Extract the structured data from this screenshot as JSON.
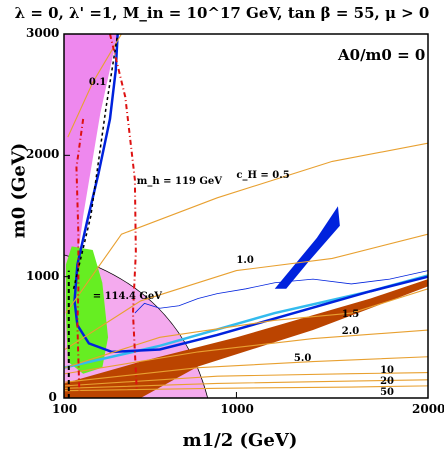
{
  "chart_data": {
    "type": "line",
    "title": "λ = 0, λ' =1, M_in = 10^17 GeV, tan β = 55, μ > 0",
    "corner_label": "A0/m0 = 0",
    "xlabel": "m1/2 (GeV)",
    "ylabel": "m0 (GeV)",
    "xlim": [
      100,
      2000
    ],
    "ylim": [
      0,
      3000
    ],
    "x_tick_labels": [
      "100",
      "1000",
      "2000"
    ],
    "y_tick_labels": [
      "0",
      "1000",
      "2000",
      "3000"
    ],
    "grid": false,
    "fine_tuning_contours": {
      "prefix_label": "c_H =",
      "levels": [
        {
          "label": "0.1",
          "points": [
            [
              120,
              2150
            ],
            [
              250,
              2600
            ],
            [
              400,
              3000
            ]
          ]
        },
        {
          "label": "0.5",
          "points": [
            [
              110,
              700
            ],
            [
              400,
              1350
            ],
            [
              900,
              1650
            ],
            [
              1500,
              1950
            ],
            [
              2000,
              2100
            ]
          ]
        },
        {
          "label": "1.0",
          "points": [
            [
              105,
              400
            ],
            [
              500,
              800
            ],
            [
              1000,
              1050
            ],
            [
              1500,
              1150
            ],
            [
              2000,
              1350
            ]
          ]
        },
        {
          "label": "1.5",
          "points": [
            [
              105,
              250
            ],
            [
              600,
              500
            ],
            [
              1200,
              640
            ],
            [
              1600,
              700
            ],
            [
              2000,
              900
            ]
          ]
        },
        {
          "label": "2.0",
          "points": [
            [
              105,
              200
            ],
            [
              800,
              380
            ],
            [
              1400,
              490
            ],
            [
              2000,
              560
            ]
          ]
        },
        {
          "label": "5.0",
          "points": [
            [
              105,
              130
            ],
            [
              800,
              250
            ],
            [
              1400,
              300
            ],
            [
              2000,
              340
            ]
          ]
        },
        {
          "label": "10",
          "points": [
            [
              105,
              100
            ],
            [
              900,
              180
            ],
            [
              1600,
              200
            ],
            [
              2000,
              210
            ]
          ]
        },
        {
          "label": "20",
          "points": [
            [
              105,
              80
            ],
            [
              900,
              120
            ],
            [
              1600,
              140
            ],
            [
              2000,
              150
            ]
          ]
        },
        {
          "label": "50",
          "points": [
            [
              105,
              60
            ],
            [
              900,
              80
            ],
            [
              1600,
              90
            ],
            [
              2000,
              100
            ]
          ]
        }
      ]
    },
    "higgs_mass_contours": [
      {
        "label": "m_h = 119 GeV",
        "points": [
          [
            340,
            3000
          ],
          [
            420,
            2480
          ],
          [
            470,
            1800
          ],
          [
            475,
            1200
          ],
          [
            460,
            700
          ],
          [
            480,
            60
          ]
        ]
      },
      {
        "label": "= 114.4 GeV",
        "points": [
          [
            200,
            2300
          ],
          [
            165,
            1900
          ],
          [
            175,
            1350
          ],
          [
            175,
            900
          ],
          [
            170,
            600
          ],
          [
            180,
            60
          ]
        ]
      }
    ],
    "regions": [
      {
        "name": "charged LSP excluded",
        "color": "#ee88ee"
      },
      {
        "name": "b to s gamma excluded",
        "color": "#bb4400"
      },
      {
        "name": "g-2 favoured",
        "color": "#f4aaee"
      },
      {
        "name": "LEP chargino",
        "color": "#66ee22"
      },
      {
        "name": "WMAP relic density",
        "color": "#0022dd"
      },
      {
        "name": "boundary",
        "color": "#33bbee"
      }
    ]
  }
}
